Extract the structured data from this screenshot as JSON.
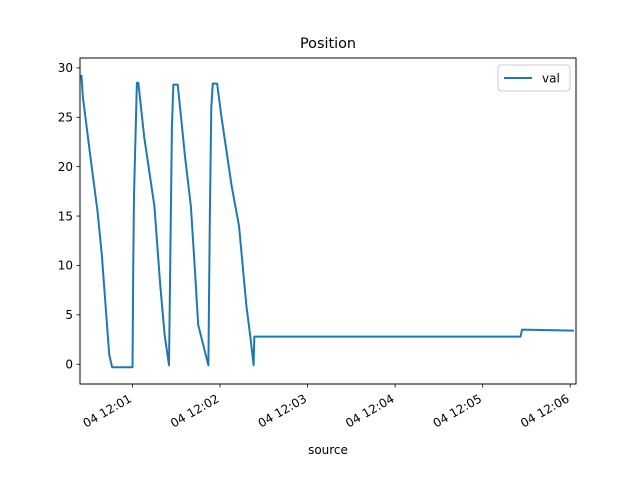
{
  "chart_data": {
    "type": "line",
    "title": "Position",
    "xlabel": "source",
    "ylabel": "",
    "x_axis_type": "time",
    "xlim": [
      "04 12:00:24",
      "04 12:06:04"
    ],
    "ylim": [
      -2,
      31
    ],
    "yticks": [
      0,
      5,
      10,
      15,
      20,
      25,
      30
    ],
    "xticks": [
      {
        "t": "04 12:01:00",
        "label": "04 12:01"
      },
      {
        "t": "04 12:02:00",
        "label": "04 12:02"
      },
      {
        "t": "04 12:03:00",
        "label": "04 12:03"
      },
      {
        "t": "04 12:04:00",
        "label": "04 12:04"
      },
      {
        "t": "04 12:05:00",
        "label": "04 12:05"
      },
      {
        "t": "04 12:06:00",
        "label": "04 12:06"
      }
    ],
    "grid": false,
    "legend": {
      "position": "top-right",
      "entries": [
        "val"
      ]
    },
    "series": [
      {
        "name": "val",
        "color": "#1f77b4",
        "points": [
          [
            "04 12:00:25",
            29.2
          ],
          [
            "04 12:00:26",
            27.0
          ],
          [
            "04 12:00:29",
            23.5
          ],
          [
            "04 12:00:32",
            20.0
          ],
          [
            "04 12:00:36",
            15.5
          ],
          [
            "04 12:00:39",
            11.0
          ],
          [
            "04 12:00:41",
            7.0
          ],
          [
            "04 12:00:43",
            3.0
          ],
          [
            "04 12:00:44",
            1.0
          ],
          [
            "04 12:00:46",
            -0.3
          ],
          [
            "04 12:01:00",
            -0.3
          ],
          [
            "04 12:01:00.5",
            10.0
          ],
          [
            "04 12:01:01",
            17.0
          ],
          [
            "04 12:01:03",
            28.5
          ],
          [
            "04 12:01:04",
            28.5
          ],
          [
            "04 12:01:08",
            23.0
          ],
          [
            "04 12:01:15",
            16.0
          ],
          [
            "04 12:01:19",
            8.0
          ],
          [
            "04 12:01:22",
            3.0
          ],
          [
            "04 12:01:25",
            -0.1
          ],
          [
            "04 12:01:26",
            12.0
          ],
          [
            "04 12:01:27",
            24.0
          ],
          [
            "04 12:01:28",
            28.3
          ],
          [
            "04 12:01:31",
            28.3
          ],
          [
            "04 12:01:36",
            21.0
          ],
          [
            "04 12:01:40",
            16.0
          ],
          [
            "04 12:01:43",
            9.0
          ],
          [
            "04 12:01:45",
            4.0
          ],
          [
            "04 12:01:52",
            -0.1
          ],
          [
            "04 12:01:53",
            15.0
          ],
          [
            "04 12:01:54",
            26.0
          ],
          [
            "04 12:01:55",
            28.4
          ],
          [
            "04 12:01:58",
            28.4
          ],
          [
            "04 12:02:01",
            25.0
          ],
          [
            "04 12:02:08",
            18.0
          ],
          [
            "04 12:02:13",
            14.0
          ],
          [
            "04 12:02:18",
            6.0
          ],
          [
            "04 12:02:21",
            2.5
          ],
          [
            "04 12:02:23",
            -0.1
          ],
          [
            "04 12:02:23.5",
            2.8
          ],
          [
            "04 12:03:30",
            2.8
          ],
          [
            "04 12:05:26",
            2.8
          ],
          [
            "04 12:05:27",
            3.5
          ],
          [
            "04 12:06:02",
            3.4
          ]
        ]
      }
    ]
  }
}
